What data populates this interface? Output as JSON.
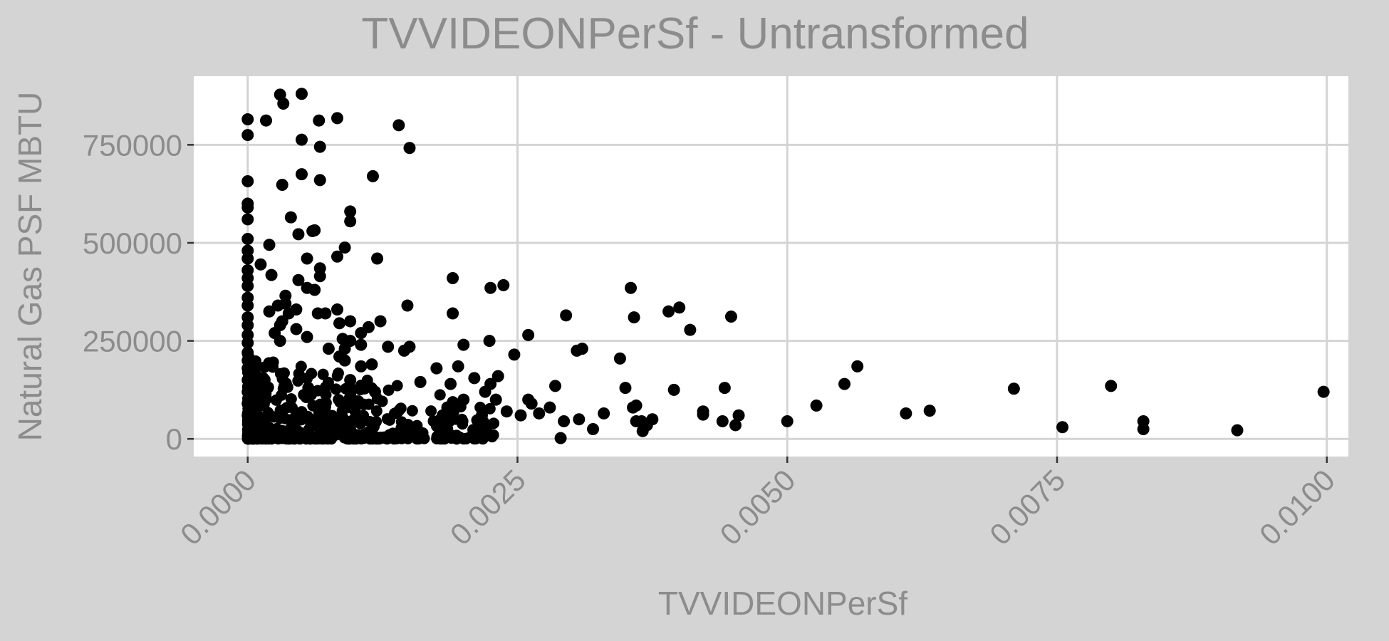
{
  "chart_data": {
    "type": "scatter",
    "title": "TVVIDEONPerSf - Untransformed",
    "xlabel": "TVVIDEONPerSf",
    "ylabel": "Natural Gas PSF MBTU",
    "x_ticks": [
      "0.0000",
      "0.0025",
      "0.0050",
      "0.0075",
      "0.0100"
    ],
    "y_ticks": [
      "0",
      "250000",
      "500000",
      "750000"
    ],
    "xlim": [
      -0.0005,
      0.0102
    ],
    "ylim": [
      -45000,
      925000
    ],
    "grid": true,
    "legend": "none",
    "colors": {
      "background": "#d4d4d4",
      "panel": "#ffffff",
      "grid": "#d4d4d4",
      "point": "#000000",
      "text": "#8c8c8c"
    },
    "series": [
      {
        "x": [
          0.0,
          0.0,
          0.0,
          0.0,
          0.0,
          0.0,
          0.0,
          0.0,
          0.0,
          0.0,
          0.0,
          0.0,
          0.0,
          0.0,
          0.0,
          0.0,
          0.0,
          0.0,
          0.0,
          0.0,
          0.0,
          0.0,
          0.0,
          0.0,
          0.0,
          0.00017,
          0.0002,
          0.00012,
          0.00022,
          0.0002,
          0.00028,
          0.00032,
          0.00035,
          0.00038,
          0.0003,
          0.00025,
          0.0003,
          0.00033,
          0.0005,
          0.00066,
          0.00083,
          0.0005,
          0.00067,
          0.00116,
          0.0005,
          0.00067,
          0.0004,
          0.0006,
          0.00032,
          0.00047,
          0.00095,
          0.00095,
          0.0009,
          0.00062,
          0.00067,
          0.00067,
          0.00047,
          0.00055,
          0.00062,
          0.00083,
          0.00095,
          0.0012,
          0.0015,
          0.00105,
          0.00112,
          0.00123,
          0.00083,
          0.00072,
          0.00065,
          0.00045,
          0.00055,
          0.00035,
          0.00045,
          0.00055,
          0.0003,
          0.00088,
          0.0009,
          0.00105,
          0.0009,
          0.00095,
          0.00105,
          0.0013,
          0.00145,
          0.0014,
          0.00148,
          0.0015,
          0.00115,
          0.00118,
          0.0011,
          0.00085,
          0.00095,
          0.00075,
          0.00085,
          0.0019,
          0.0019,
          0.00188,
          0.00175,
          0.0016,
          0.002,
          0.00195,
          0.00185,
          0.002,
          0.00225,
          0.00224,
          0.00237,
          0.00232,
          0.00225,
          0.0022,
          0.0023,
          0.0021,
          0.00217,
          0.0024,
          0.0026,
          0.00263,
          0.00253,
          0.00247,
          0.0026,
          0.0027,
          0.00285,
          0.0028,
          0.00293,
          0.0029,
          0.00295,
          0.00305,
          0.00307,
          0.0031,
          0.0032,
          0.0033,
          0.00345,
          0.0035,
          0.00358,
          0.00355,
          0.00357,
          0.0036,
          0.0036,
          0.0039,
          0.004,
          0.00395,
          0.0041,
          0.00422,
          0.00422,
          0.00442,
          0.0044,
          0.00448,
          0.00452,
          0.00455,
          0.00366,
          0.0037,
          0.00375,
          0.00365,
          0.005,
          0.00527,
          0.00553,
          0.00565,
          0.0061,
          0.00632,
          0.0071,
          0.00755,
          0.008,
          0.0083,
          0.0083,
          0.00917,
          0.00997
        ],
        "y": [
          815000,
          775000,
          657000,
          600000,
          590000,
          560000,
          510000,
          480000,
          460000,
          430000,
          410000,
          390000,
          360000,
          340000,
          310000,
          290000,
          265000,
          245000,
          220000,
          200000,
          180000,
          150000,
          120000,
          90000,
          60000,
          812000,
          495000,
          445000,
          418000,
          325000,
          340000,
          300000,
          365000,
          320000,
          290000,
          270000,
          878000,
          855000,
          880000,
          812000,
          818000,
          763000,
          745000,
          670000,
          675000,
          660000,
          565000,
          530000,
          648000,
          522000,
          580000,
          555000,
          488000,
          532000,
          435000,
          415000,
          405000,
          460000,
          380000,
          465000,
          300000,
          460000,
          742000,
          270000,
          285000,
          300000,
          330000,
          320000,
          320000,
          330000,
          385000,
          345000,
          280000,
          260000,
          250000,
          255000,
          230000,
          240000,
          200000,
          150000,
          185000,
          235000,
          225000,
          800000,
          340000,
          235000,
          190000,
          120000,
          135000,
          295000,
          250000,
          230000,
          210000,
          410000,
          320000,
          140000,
          180000,
          145000,
          240000,
          185000,
          80000,
          100000,
          385000,
          250000,
          392000,
          160000,
          140000,
          120000,
          100000,
          155000,
          60000,
          70000,
          265000,
          90000,
          60000,
          215000,
          100000,
          65000,
          135000,
          80000,
          45000,
          2000,
          315000,
          225000,
          50000,
          230000,
          25000,
          65000,
          205000,
          130000,
          310000,
          385000,
          80000,
          85000,
          45000,
          325000,
          335000,
          125000,
          278000,
          62000,
          70000,
          130000,
          45000,
          312000,
          35000,
          60000,
          20000,
          35000,
          50000,
          45000,
          45000,
          85000,
          140000,
          185000,
          65000,
          72000,
          128000,
          30000,
          135000,
          45000,
          25000,
          22000,
          120000
        ]
      }
    ]
  }
}
